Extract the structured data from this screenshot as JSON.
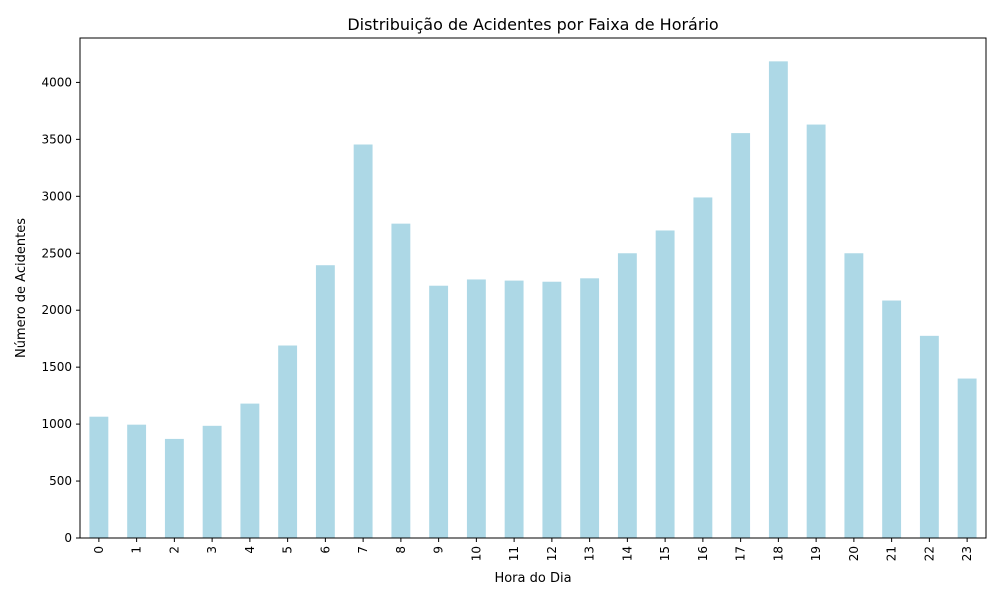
{
  "chart_data": {
    "type": "bar",
    "title": "Distribuição de Acidentes por Faixa de Horário",
    "xlabel": "Hora do Dia",
    "ylabel": "Número de Acidentes",
    "categories": [
      "0",
      "1",
      "2",
      "3",
      "4",
      "5",
      "6",
      "7",
      "8",
      "9",
      "10",
      "11",
      "12",
      "13",
      "14",
      "15",
      "16",
      "17",
      "18",
      "19",
      "20",
      "21",
      "22",
      "23"
    ],
    "values": [
      1065,
      995,
      870,
      985,
      1180,
      1690,
      2395,
      3455,
      2760,
      2215,
      2270,
      2260,
      2250,
      2280,
      2500,
      2700,
      2990,
      3555,
      4185,
      3630,
      2500,
      2085,
      1775,
      1400
    ],
    "y_ticks": [
      0,
      500,
      1000,
      1500,
      2000,
      2500,
      3000,
      3500,
      4000
    ],
    "ylim": [
      0,
      4390
    ],
    "grid": false,
    "bar_color": "#add8e6"
  }
}
